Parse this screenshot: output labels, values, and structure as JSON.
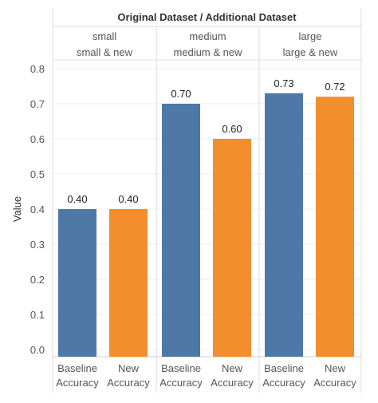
{
  "chart_data": {
    "type": "bar",
    "header_title": "Original Dataset  / Additional Dataset",
    "panels": [
      {
        "original": "small",
        "additional": "small & new",
        "values": [
          0.4,
          0.4
        ],
        "labels": [
          "0.40",
          "0.40"
        ]
      },
      {
        "original": "medium",
        "additional": "medium & new",
        "values": [
          0.7,
          0.6
        ],
        "labels": [
          "0.70",
          "0.60"
        ]
      },
      {
        "original": "large",
        "additional": "large & new",
        "values": [
          0.73,
          0.72
        ],
        "labels": [
          "0.73",
          "0.72"
        ]
      }
    ],
    "categories": [
      {
        "line1": "Baseline",
        "line2": "Accuracy"
      },
      {
        "line1": "New",
        "line2": "Accuracy"
      }
    ],
    "ylabel": "Value",
    "ylim": [
      0,
      0.8
    ],
    "yticks": [
      "0.0",
      "0.1",
      "0.2",
      "0.3",
      "0.4",
      "0.5",
      "0.6",
      "0.7",
      "0.8"
    ],
    "grid": true,
    "colors": [
      "#4e79a7",
      "#f28e2b"
    ]
  }
}
